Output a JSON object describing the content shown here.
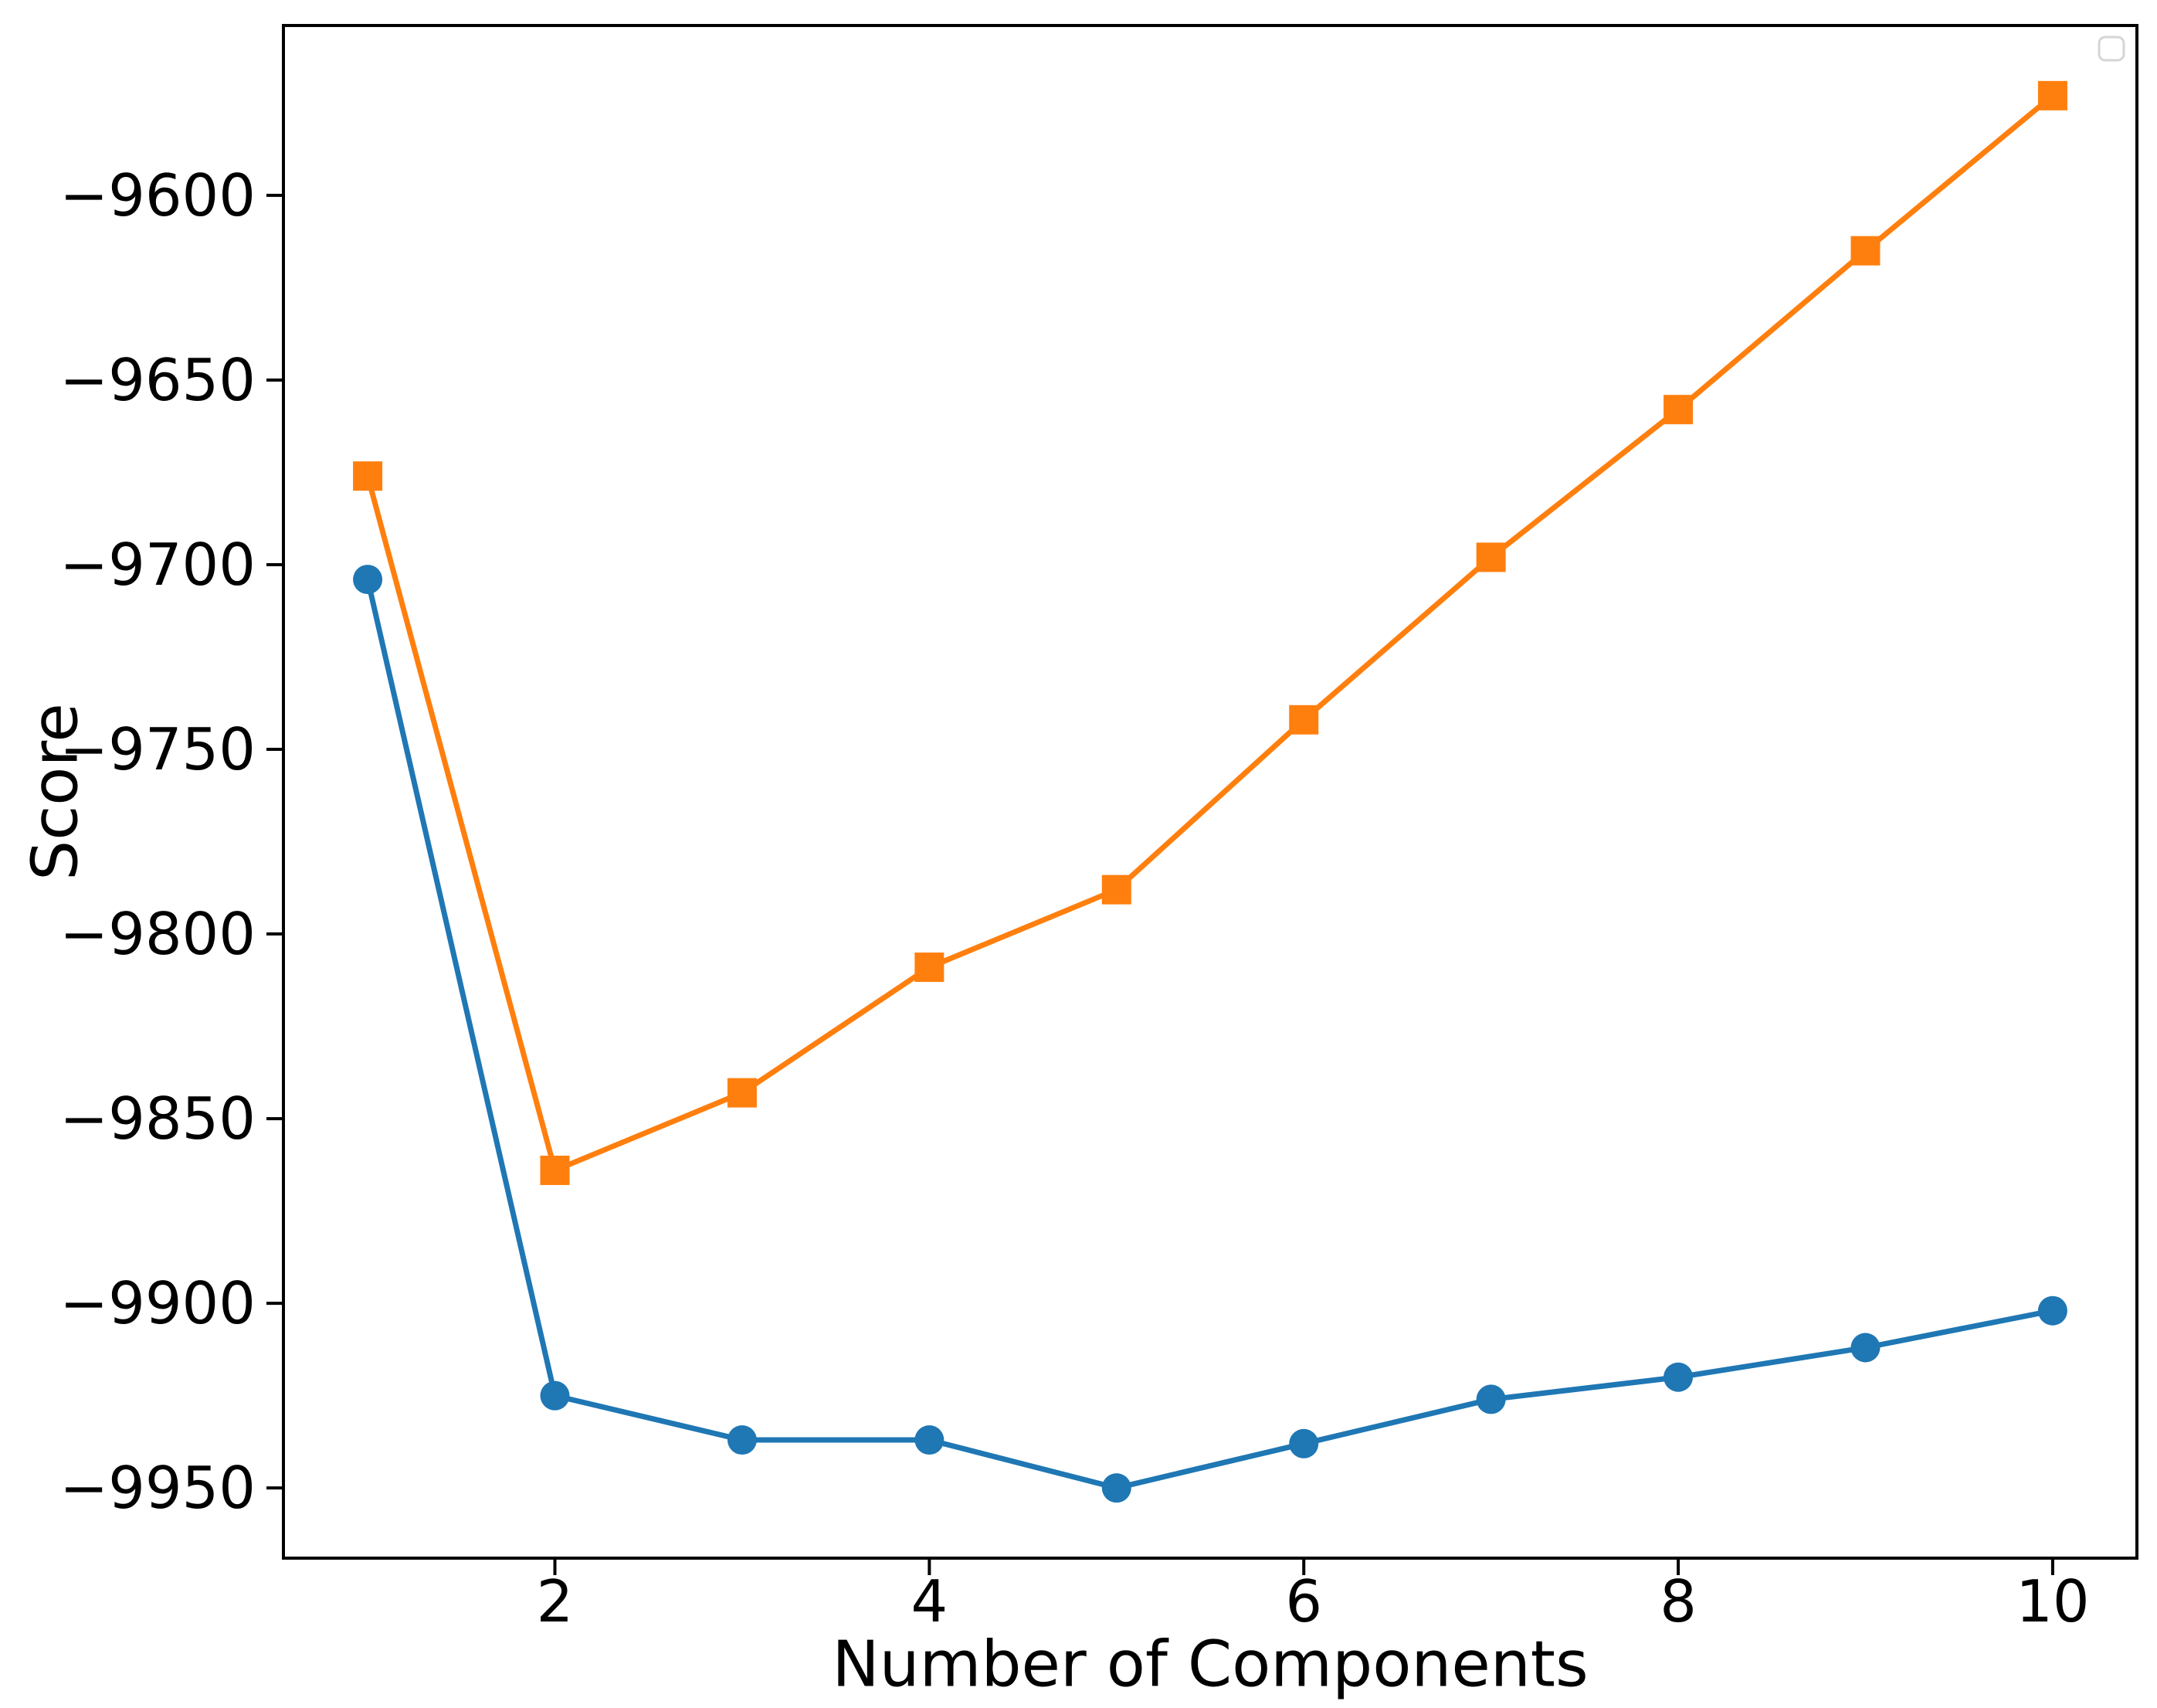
{
  "figure": {
    "background": "#ffffff",
    "spine_color": "#000000",
    "tick_color": "#000000",
    "text_color": "#000000"
  },
  "legend": {
    "visible": true,
    "entries": [],
    "border_color": "#d5d5d5",
    "background": "#ffffff",
    "position": "upper-right"
  },
  "chart_data": {
    "type": "line",
    "title": "",
    "xlabel": "Number of Components",
    "ylabel": "Score",
    "x": [
      1,
      2,
      3,
      4,
      5,
      6,
      7,
      8,
      9,
      10
    ],
    "series": [
      {
        "name": "blue-circle-series",
        "color": "#1f77b4",
        "marker": "circle",
        "values": [
          -9704,
          -9925,
          -9937,
          -9937,
          -9950,
          -9938,
          -9926,
          -9920,
          -9912,
          -9902
        ]
      },
      {
        "name": "orange-square-series",
        "color": "#ff7f0e",
        "marker": "square",
        "values": [
          -9676,
          -9864,
          -9843,
          -9809,
          -9788,
          -9742,
          -9698,
          -9658,
          -9615,
          -9573
        ]
      }
    ],
    "xticks": [
      2,
      4,
      6,
      8,
      10
    ],
    "yticks": [
      -9600,
      -9650,
      -9700,
      -9750,
      -9800,
      -9850,
      -9900,
      -9950
    ],
    "xlim": [
      0.55,
      10.45
    ],
    "ylim": [
      -9969,
      -9554
    ],
    "grid": false,
    "legend_position": "upper right"
  }
}
